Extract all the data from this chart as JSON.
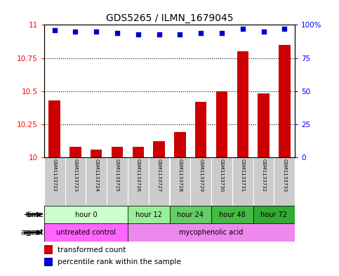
{
  "title": "GDS5265 / ILMN_1679045",
  "samples": [
    "GSM1133722",
    "GSM1133723",
    "GSM1133724",
    "GSM1133725",
    "GSM1133726",
    "GSM1133727",
    "GSM1133728",
    "GSM1133729",
    "GSM1133730",
    "GSM1133731",
    "GSM1133732",
    "GSM1133733"
  ],
  "transformed_counts": [
    10.43,
    10.08,
    10.06,
    10.08,
    10.08,
    10.12,
    10.19,
    10.42,
    10.5,
    10.8,
    10.48,
    10.85
  ],
  "percentile_ranks": [
    96,
    95,
    95,
    94,
    93,
    93,
    93,
    94,
    94,
    97,
    95,
    97
  ],
  "y_min": 10.0,
  "y_max": 11.0,
  "y_ticks_left": [
    10.0,
    10.25,
    10.5,
    10.75,
    11.0
  ],
  "y_tick_labels_left": [
    "10",
    "10.25",
    "10.5",
    "10.75",
    "11"
  ],
  "y_ticks_right": [
    10.0,
    10.25,
    10.5,
    10.75,
    11.0
  ],
  "y_tick_labels_right": [
    "0",
    "25",
    "50",
    "75",
    "100%"
  ],
  "bar_color": "#cc0000",
  "dot_color": "#0000cc",
  "time_groups": [
    {
      "label": "hour 0",
      "start": 0,
      "end": 4,
      "color": "#ccffcc"
    },
    {
      "label": "hour 12",
      "start": 4,
      "end": 6,
      "color": "#99ee99"
    },
    {
      "label": "hour 24",
      "start": 6,
      "end": 8,
      "color": "#66cc66"
    },
    {
      "label": "hour 48",
      "start": 8,
      "end": 10,
      "color": "#44bb44"
    },
    {
      "label": "hour 72",
      "start": 10,
      "end": 12,
      "color": "#33aa33"
    }
  ],
  "agent_groups": [
    {
      "label": "untreated control",
      "start": 0,
      "end": 4,
      "color": "#ff66ff"
    },
    {
      "label": "mycophenolic acid",
      "start": 4,
      "end": 12,
      "color": "#ee88ee"
    }
  ],
  "legend_bar_label": "transformed count",
  "legend_dot_label": "percentile rank within the sample",
  "sample_bg_color": "#cccccc",
  "border_color": "#888888"
}
